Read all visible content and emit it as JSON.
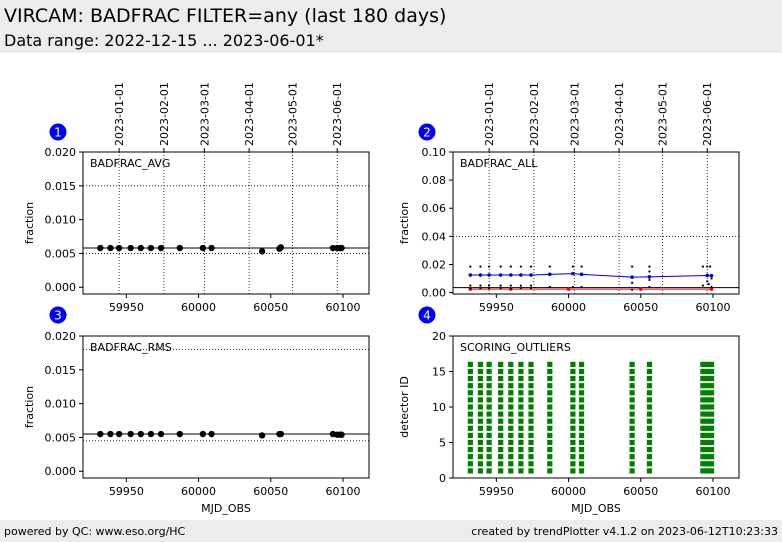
{
  "header": {
    "title": "VIRCAM: BADFRAC FILTER=any (last 180 days)",
    "subtitle": "Data range: 2022-12-15 ... 2023-06-01*"
  },
  "footer": {
    "left": "powered by QC: www.eso.org/HC",
    "right": "created by trendPlotter v4.1.2 on 2023-06-12T10:23:33"
  },
  "colors": {
    "marker": "#000000",
    "series_blue": "#0000cc",
    "series_red": "#ff0000",
    "outlier_green": "#008000",
    "badge": "#0000ff"
  },
  "chart_data": [
    {
      "id": "1",
      "type": "scatter",
      "label": "BADFRAC_AVG",
      "ylabel": "fraction",
      "xlabel": "",
      "xlim": [
        59920,
        60118
      ],
      "ylim": [
        -0.001,
        0.02
      ],
      "xticks": [
        59950,
        60000,
        60050,
        60100
      ],
      "yticks": [
        0.0,
        0.005,
        0.01,
        0.015,
        0.02
      ],
      "ytick_labels": [
        "0.000",
        "0.005",
        "0.010",
        "0.015",
        "0.020"
      ],
      "hlines": [
        {
          "y": 0.0058,
          "style": "solid"
        },
        {
          "y": 0.015,
          "style": "dotted"
        },
        {
          "y": 0.005,
          "style": "dotted"
        }
      ],
      "date_ticks": [
        {
          "x": 59945,
          "label": "2023-01-01"
        },
        {
          "x": 59976,
          "label": "2023-02-01"
        },
        {
          "x": 60004,
          "label": "2023-03-01"
        },
        {
          "x": 60035,
          "label": "2023-04-01"
        },
        {
          "x": 60065,
          "label": "2023-05-01"
        },
        {
          "x": 60096,
          "label": "2023-06-01"
        }
      ],
      "x": [
        59932,
        59939,
        59945,
        59953,
        59960,
        59967,
        59974,
        59987,
        60003,
        60009,
        60044,
        60056,
        60057,
        60093,
        60096,
        60098,
        60099
      ],
      "y": [
        0.0058,
        0.0058,
        0.0058,
        0.0058,
        0.0058,
        0.0058,
        0.0058,
        0.0058,
        0.0058,
        0.0058,
        0.0053,
        0.0057,
        0.0059,
        0.0058,
        0.0058,
        0.0058,
        0.0058
      ]
    },
    {
      "id": "2",
      "type": "line",
      "label": "BADFRAC_ALL",
      "ylabel": "fraction",
      "xlabel": "",
      "xlim": [
        59920,
        60118
      ],
      "ylim": [
        -0.001,
        0.1
      ],
      "xticks": [
        59950,
        60000,
        60050,
        60100
      ],
      "yticks": [
        0.0,
        0.02,
        0.04,
        0.06,
        0.08,
        0.1
      ],
      "ytick_labels": [
        "0.00",
        "0.02",
        "0.04",
        "0.06",
        "0.08",
        "0.10"
      ],
      "hlines": [
        {
          "y": 0.0035,
          "style": "solid"
        },
        {
          "y": 0.04,
          "style": "dotted"
        }
      ],
      "date_ticks": [
        {
          "x": 59945,
          "label": "2023-01-01"
        },
        {
          "x": 59976,
          "label": "2023-02-01"
        },
        {
          "x": 60004,
          "label": "2023-03-01"
        },
        {
          "x": 60035,
          "label": "2023-04-01"
        },
        {
          "x": 60065,
          "label": "2023-05-01"
        },
        {
          "x": 60096,
          "label": "2023-06-01"
        }
      ],
      "series": [
        {
          "color": "#0000cc",
          "x": [
            59932,
            59939,
            59945,
            59953,
            59960,
            59967,
            59974,
            59987,
            60003,
            60009,
            60044,
            60056,
            60096,
            60099
          ],
          "y": [
            0.0125,
            0.0125,
            0.0125,
            0.0125,
            0.0125,
            0.0125,
            0.0125,
            0.013,
            0.0135,
            0.013,
            0.011,
            0.0112,
            0.0122,
            0.012
          ]
        },
        {
          "color": "#ff0000",
          "x": [
            59932,
            59960,
            60000,
            60050,
            60099
          ],
          "y": [
            0.0025,
            0.0025,
            0.0025,
            0.0025,
            0.0025
          ]
        }
      ],
      "scatter": {
        "x": [
          59932,
          59932,
          59932,
          59939,
          59939,
          59939,
          59945,
          59945,
          59945,
          59953,
          59953,
          59953,
          59960,
          59960,
          59960,
          59967,
          59967,
          59967,
          59974,
          59974,
          59974,
          59987,
          59987,
          60003,
          60003,
          60009,
          60009,
          60044,
          60044,
          60044,
          60056,
          60056,
          60056,
          60056,
          60093,
          60093,
          60096,
          60096,
          60097,
          60098,
          60099,
          60099
        ],
        "y": [
          0.0185,
          0.005,
          0.003,
          0.0185,
          0.005,
          0.003,
          0.0185,
          0.005,
          0.003,
          0.0185,
          0.005,
          0.003,
          0.0185,
          0.005,
          0.003,
          0.0185,
          0.005,
          0.003,
          0.0185,
          0.005,
          0.003,
          0.0185,
          0.004,
          0.0185,
          0.004,
          0.0185,
          0.004,
          0.0185,
          0.007,
          0.002,
          0.0185,
          0.015,
          0.009,
          0.004,
          0.0185,
          0.005,
          0.0185,
          0.008,
          0.006,
          0.0185,
          0.01,
          0.004
        ]
      }
    },
    {
      "id": "3",
      "type": "scatter",
      "label": "BADFRAC_RMS",
      "ylabel": "fraction",
      "xlabel": "MJD_OBS",
      "xlim": [
        59920,
        60118
      ],
      "ylim": [
        -0.001,
        0.02
      ],
      "xticks": [
        59950,
        60000,
        60050,
        60100
      ],
      "yticks": [
        0.0,
        0.005,
        0.01,
        0.015,
        0.02
      ],
      "ytick_labels": [
        "0.000",
        "0.005",
        "0.010",
        "0.015",
        "0.020"
      ],
      "hlines": [
        {
          "y": 0.0055,
          "style": "solid"
        },
        {
          "y": 0.018,
          "style": "dotted"
        },
        {
          "y": 0.0045,
          "style": "dotted"
        }
      ],
      "date_ticks": [],
      "x": [
        59932,
        59939,
        59945,
        59953,
        59960,
        59967,
        59974,
        59987,
        60003,
        60009,
        60044,
        60056,
        60057,
        60093,
        60096,
        60098,
        60099
      ],
      "y": [
        0.0055,
        0.0055,
        0.0055,
        0.0055,
        0.0055,
        0.0055,
        0.0055,
        0.0055,
        0.0055,
        0.0055,
        0.0053,
        0.0055,
        0.0055,
        0.0055,
        0.0054,
        0.0054,
        0.0054
      ]
    },
    {
      "id": "4",
      "type": "scatter",
      "label": "SCORING_OUTLIERS",
      "ylabel": "detector ID",
      "xlabel": "MJD_OBS",
      "xlim": [
        59920,
        60118
      ],
      "ylim": [
        0,
        20
      ],
      "xticks": [
        59950,
        60000,
        60050,
        60100
      ],
      "yticks": [
        0,
        5,
        10,
        15,
        20
      ],
      "ytick_labels": [
        "0",
        "5",
        "10",
        "15",
        "20"
      ],
      "hlines": [],
      "date_ticks": [],
      "detector_ids": [
        1,
        2,
        3,
        4,
        5,
        6,
        7,
        8,
        9,
        10,
        11,
        12,
        13,
        14,
        15,
        16
      ],
      "x": [
        59932,
        59939,
        59945,
        59953,
        59960,
        59967,
        59974,
        59987,
        60003,
        60009,
        60044,
        60056,
        60093,
        60096,
        60099
      ]
    }
  ]
}
